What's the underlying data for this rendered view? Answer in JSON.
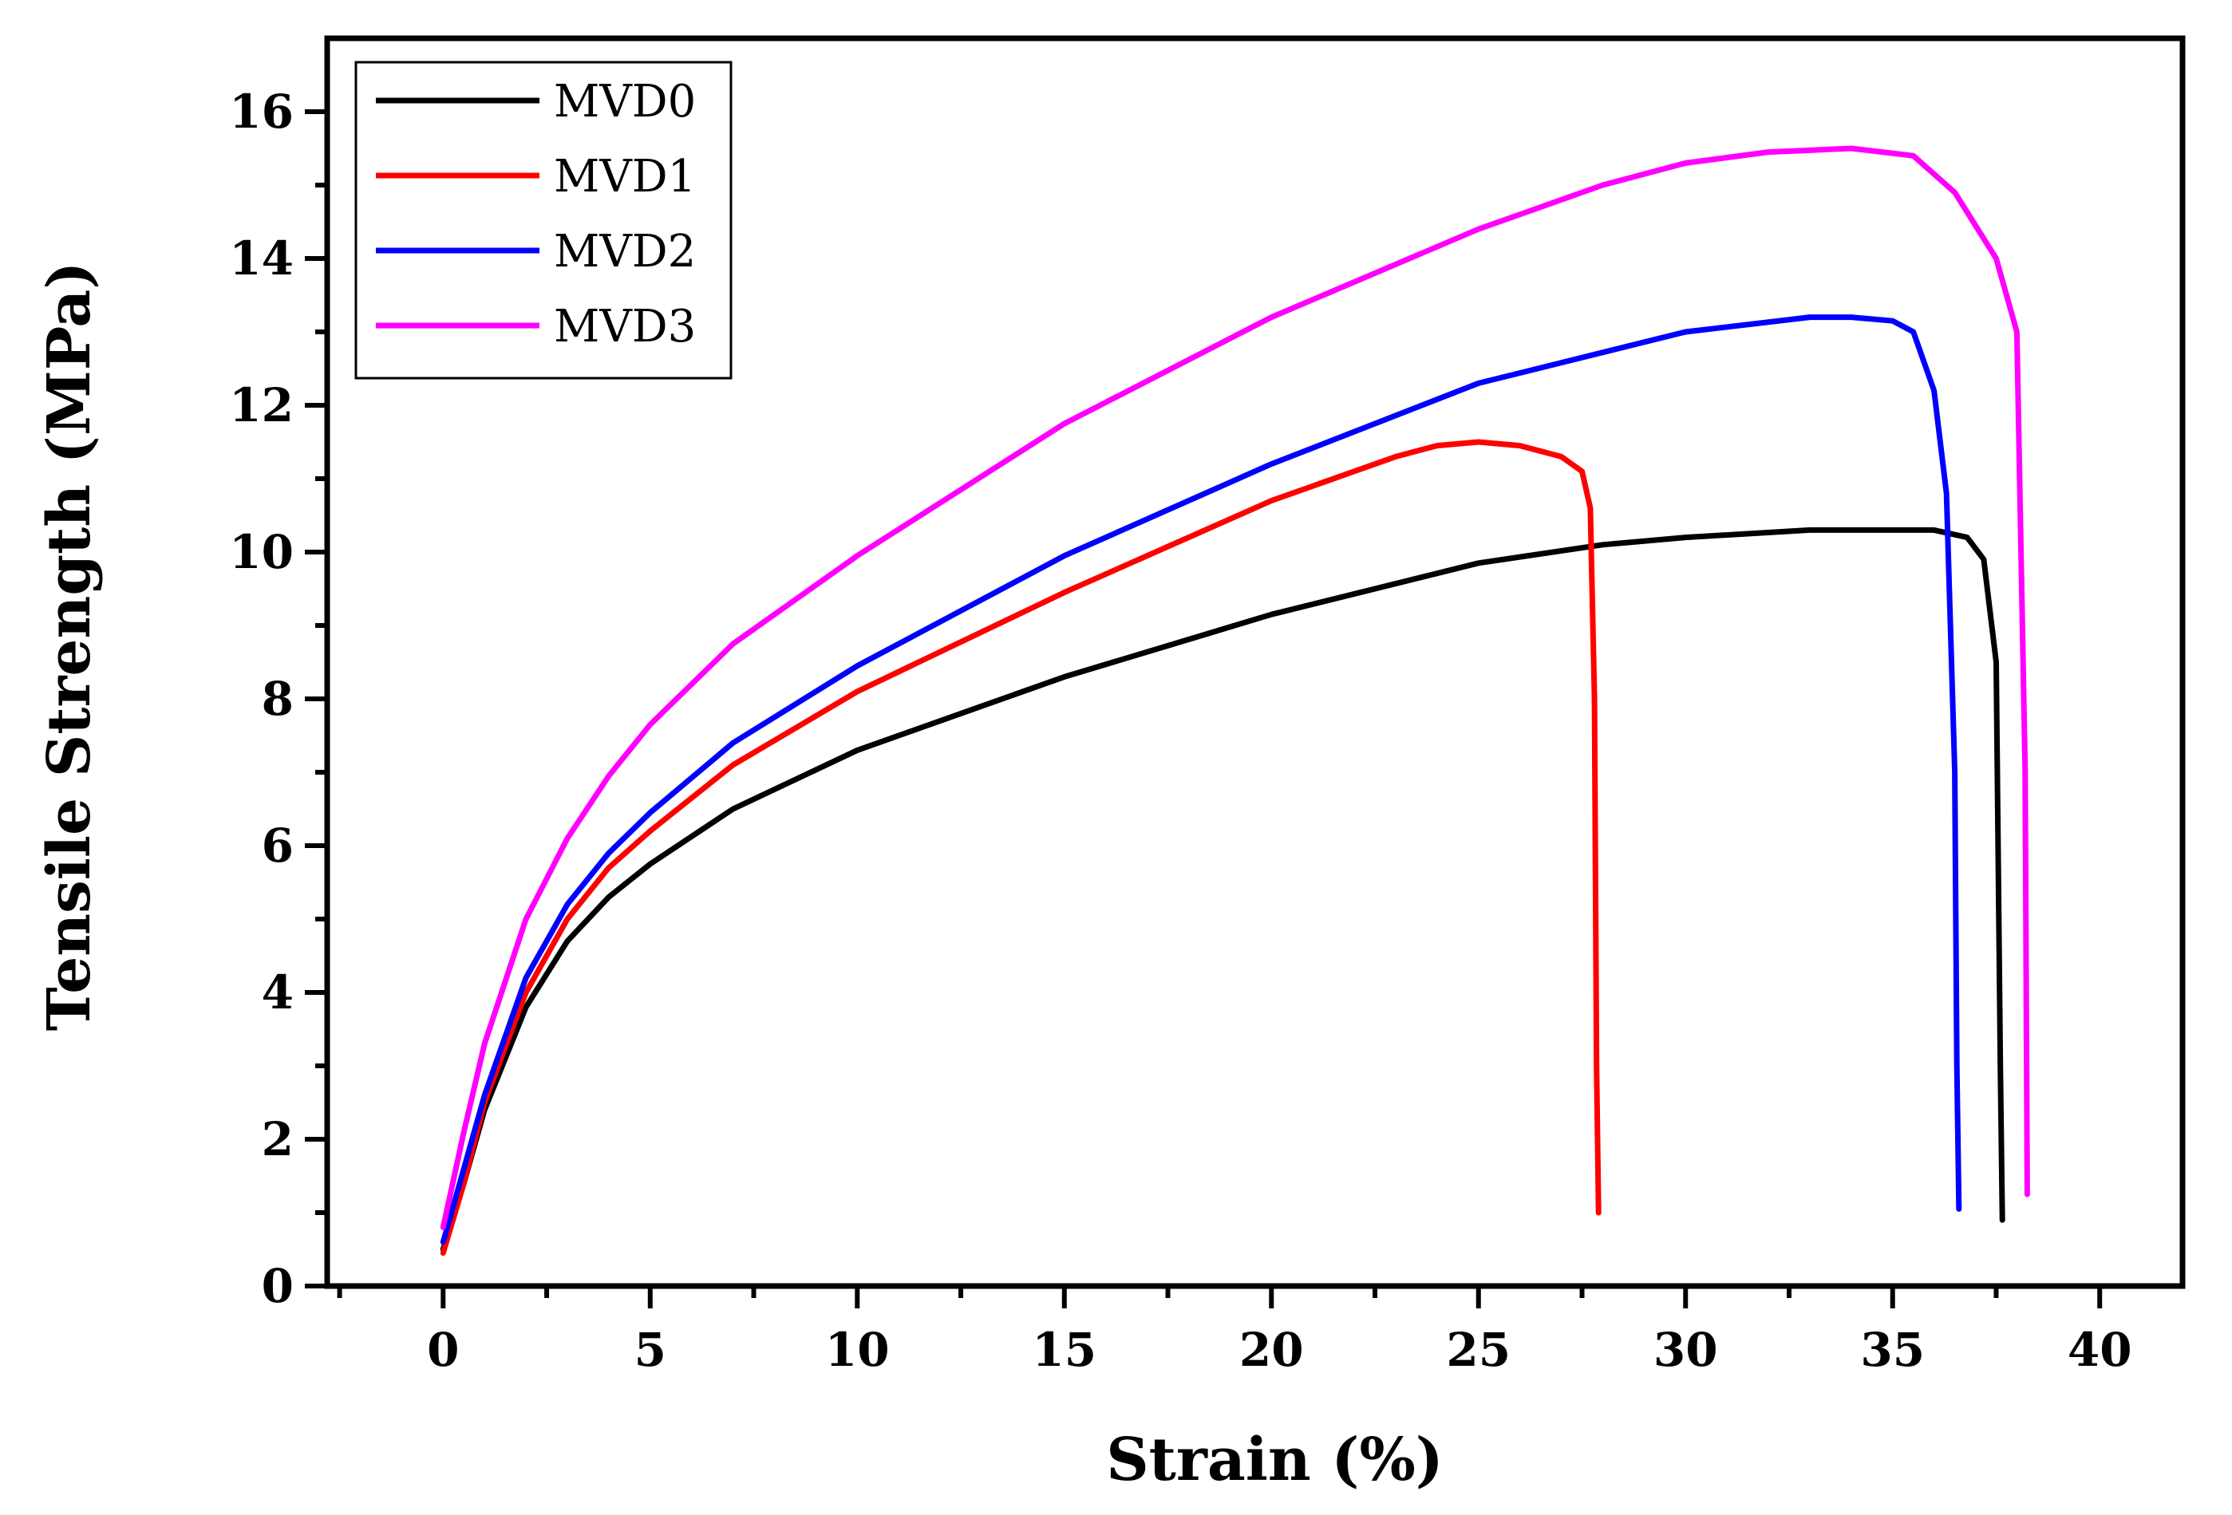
{
  "chart_data": {
    "type": "line",
    "title": "",
    "xlabel": "Strain (%)",
    "ylabel": "Tensile Strength (MPa)",
    "xlim": [
      -2.8,
      42
    ],
    "ylim": [
      0,
      17
    ],
    "xticks": [
      0,
      5,
      10,
      15,
      20,
      25,
      30,
      35,
      40
    ],
    "yticks": [
      0,
      2,
      4,
      6,
      8,
      10,
      12,
      14,
      16
    ],
    "grid": false,
    "legend": "top-left",
    "series": [
      {
        "name": "MVD0",
        "color": "#000000",
        "x": [
          0,
          0.5,
          1,
          2,
          3,
          4,
          5,
          7,
          10,
          15,
          20,
          25,
          28,
          30,
          33,
          36,
          36.8,
          37.2,
          37.5,
          37.6,
          37.65
        ],
        "y": [
          0.5,
          1.4,
          2.4,
          3.8,
          4.7,
          5.3,
          5.75,
          6.5,
          7.3,
          8.3,
          9.15,
          9.85,
          10.1,
          10.2,
          10.3,
          10.3,
          10.2,
          9.9,
          8.5,
          3.0,
          0.9
        ]
      },
      {
        "name": "MVD1",
        "color": "#ff0000",
        "x": [
          0,
          0.5,
          1,
          2,
          3,
          4,
          5,
          7,
          10,
          15,
          20,
          23,
          24,
          25,
          26,
          27,
          27.5,
          27.7,
          27.8,
          27.85,
          27.9
        ],
        "y": [
          0.45,
          1.4,
          2.5,
          4.0,
          5.0,
          5.7,
          6.2,
          7.1,
          8.1,
          9.45,
          10.7,
          11.3,
          11.45,
          11.5,
          11.45,
          11.3,
          11.1,
          10.6,
          8.0,
          3.0,
          1.0
        ]
      },
      {
        "name": "MVD2",
        "color": "#0000ff",
        "x": [
          0,
          0.5,
          1,
          2,
          3,
          4,
          5,
          7,
          10,
          15,
          20,
          25,
          30,
          33,
          34,
          35,
          35.5,
          36,
          36.3,
          36.5,
          36.55,
          36.6
        ],
        "y": [
          0.6,
          1.6,
          2.6,
          4.2,
          5.2,
          5.9,
          6.45,
          7.4,
          8.45,
          9.95,
          11.2,
          12.3,
          13.0,
          13.2,
          13.2,
          13.15,
          13.0,
          12.2,
          10.8,
          7.0,
          3.0,
          1.05
        ]
      },
      {
        "name": "MVD3",
        "color": "#ff00ff",
        "x": [
          0,
          0.5,
          1,
          2,
          3,
          4,
          5,
          7,
          10,
          15,
          20,
          25,
          28,
          30,
          32,
          34,
          35.5,
          36.5,
          37.5,
          38,
          38.2,
          38.25
        ],
        "y": [
          0.8,
          2.1,
          3.3,
          5.0,
          6.1,
          6.95,
          7.65,
          8.75,
          9.95,
          11.75,
          13.2,
          14.4,
          15.0,
          15.3,
          15.45,
          15.5,
          15.4,
          14.9,
          14.0,
          13.0,
          7.0,
          1.25
        ]
      }
    ]
  }
}
